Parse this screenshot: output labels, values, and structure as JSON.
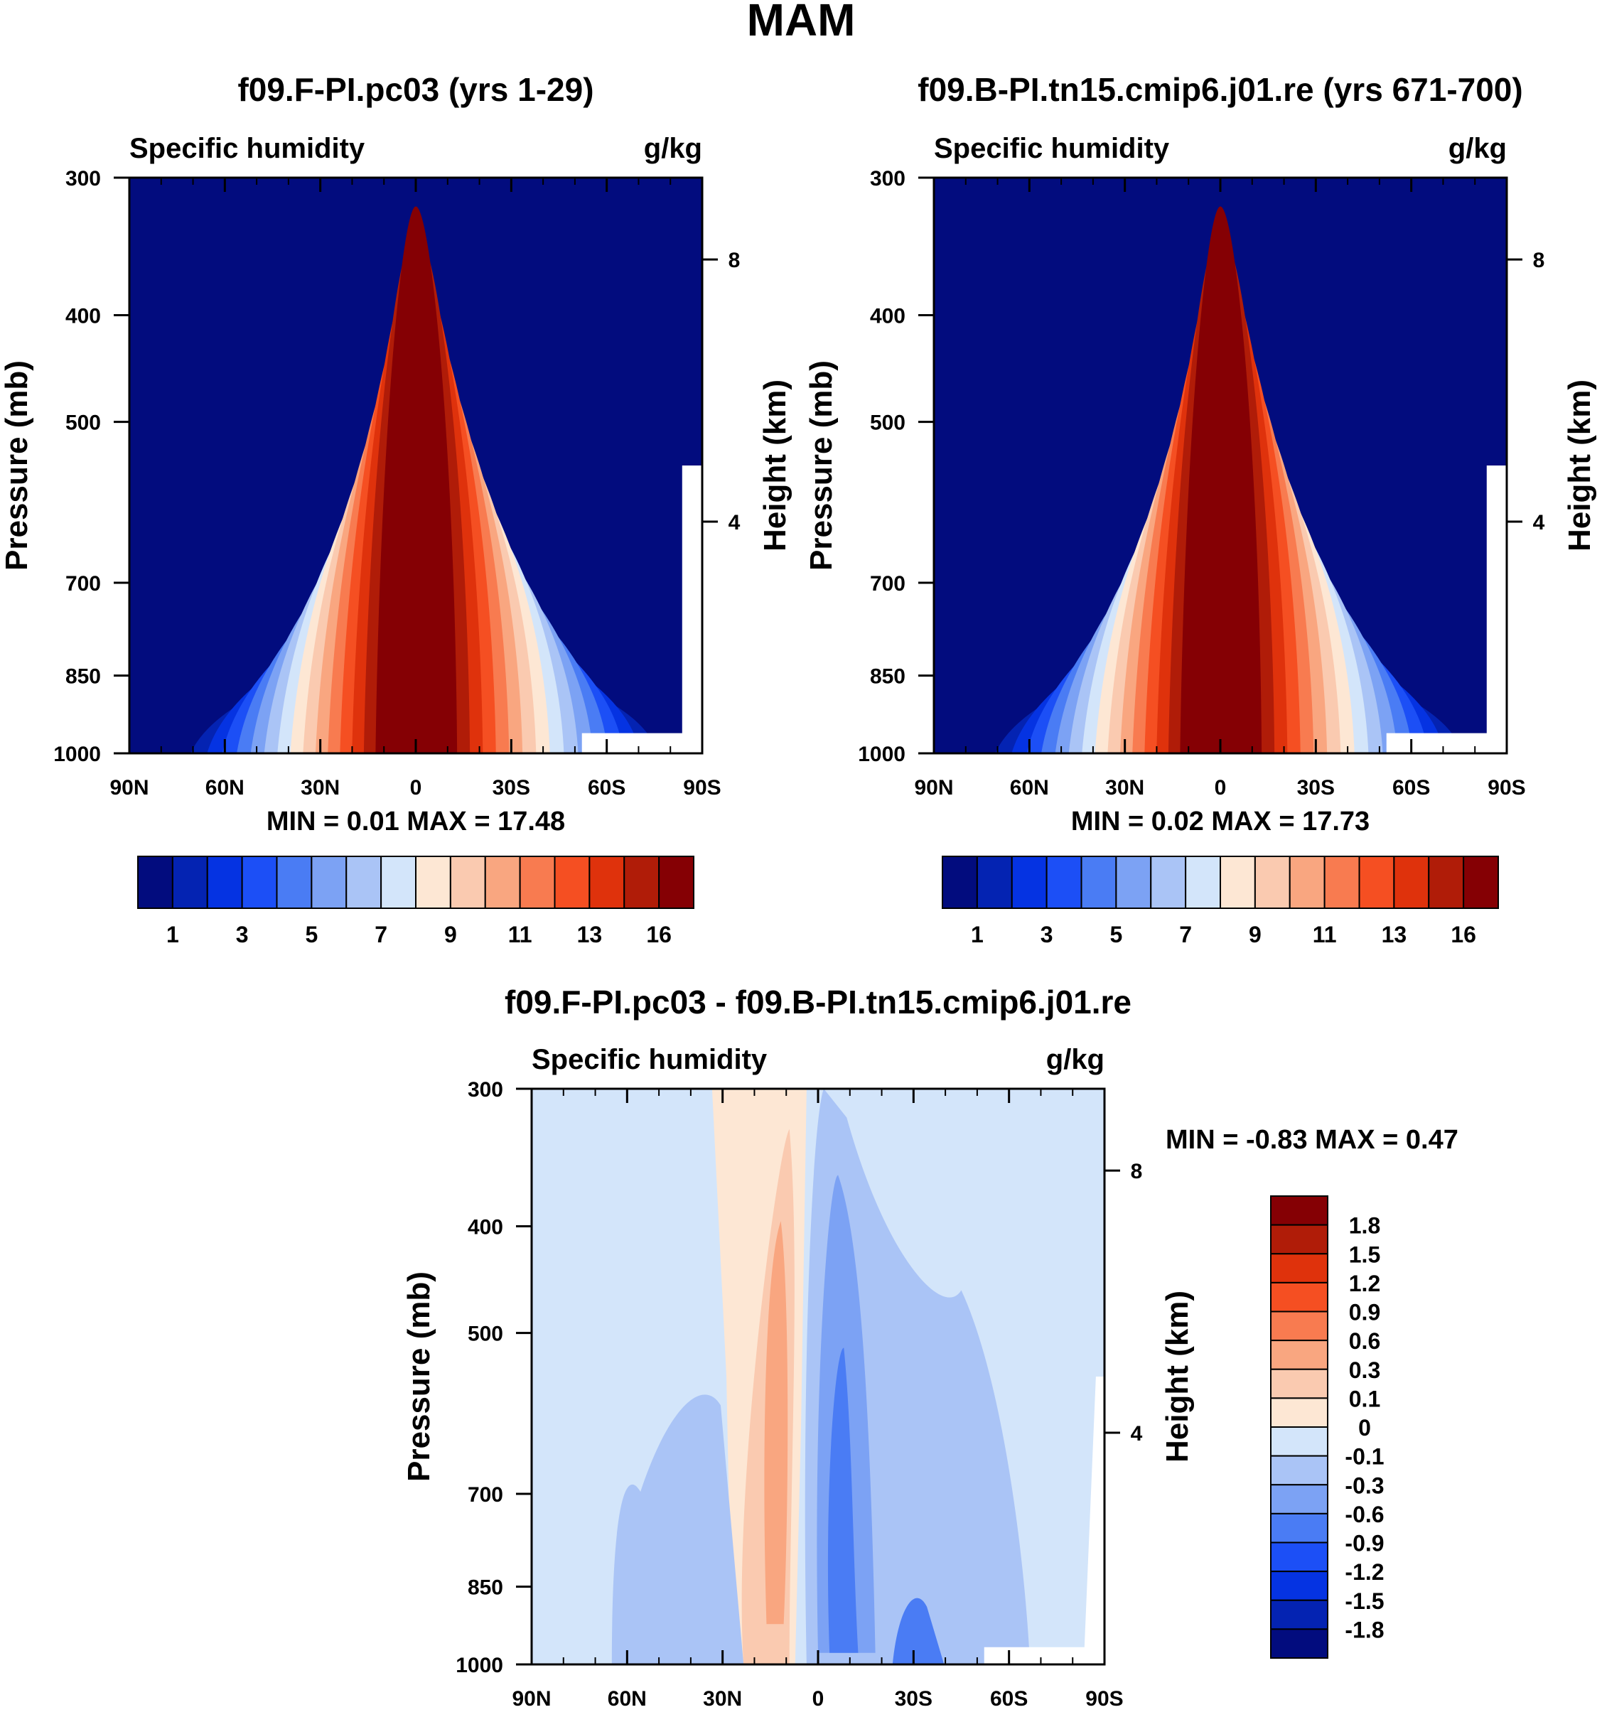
{
  "figure": {
    "title": "MAM"
  },
  "chart_data": [
    {
      "type": "heatmap",
      "title": "f09.F-PI.pc03 (yrs 1-29)",
      "subtitle_left": "Specific humidity",
      "subtitle_right": "g/kg",
      "ylabel": "Pressure (mb)",
      "ylabel_right": "Height (km)",
      "x_ticks": [
        "90N",
        "60N",
        "30N",
        "0",
        "30S",
        "60S",
        "90S"
      ],
      "y_ticks": [
        "300",
        "400",
        "500",
        "700",
        "850",
        "1000"
      ],
      "y_ticks_right": [
        "8",
        "4"
      ],
      "min_label": "MIN =",
      "min_value": "0.01",
      "max_label": "MAX =",
      "max_value": "17.48",
      "ylim": [
        1000,
        300
      ],
      "xlim": [
        "90N",
        "90S"
      ],
      "colorbar_labels": [
        "1",
        "3",
        "5",
        "7",
        "9",
        "11",
        "13",
        "16"
      ],
      "colorbar_colors": [
        "#020c7e",
        "#0423b2",
        "#0533e2",
        "#1c4ff6",
        "#4a7cf4",
        "#7ca2f4",
        "#aac4f6",
        "#d3e5fa",
        "#fde7d4",
        "#facab0",
        "#f9a680",
        "#f87b50",
        "#f54f22",
        "#df320c",
        "#b01c08",
        "#850004"
      ],
      "peak_center_lat": 0,
      "peak_max": 17.48
    },
    {
      "type": "heatmap",
      "title": "f09.B-PI.tn15.cmip6.j01.re (yrs 671-700)",
      "subtitle_left": "Specific humidity",
      "subtitle_right": "g/kg",
      "ylabel": "Pressure (mb)",
      "ylabel_right": "Height (km)",
      "x_ticks": [
        "90N",
        "60N",
        "30N",
        "0",
        "30S",
        "60S",
        "90S"
      ],
      "y_ticks": [
        "300",
        "400",
        "500",
        "700",
        "850",
        "1000"
      ],
      "y_ticks_right": [
        "8",
        "4"
      ],
      "min_label": "MIN =",
      "min_value": "0.02",
      "max_label": "MAX =",
      "max_value": "17.73",
      "ylim": [
        1000,
        300
      ],
      "xlim": [
        "90N",
        "90S"
      ],
      "colorbar_labels": [
        "1",
        "3",
        "5",
        "7",
        "9",
        "11",
        "13",
        "16"
      ],
      "colorbar_colors": [
        "#020c7e",
        "#0423b2",
        "#0533e2",
        "#1c4ff6",
        "#4a7cf4",
        "#7ca2f4",
        "#aac4f6",
        "#d3e5fa",
        "#fde7d4",
        "#facab0",
        "#f9a680",
        "#f87b50",
        "#f54f22",
        "#df320c",
        "#b01c08",
        "#850004"
      ],
      "peak_center_lat": 0,
      "peak_max": 17.73
    },
    {
      "type": "heatmap",
      "title": "f09.F-PI.pc03 - f09.B-PI.tn15.cmip6.j01.re",
      "subtitle_left": "Specific humidity",
      "subtitle_right": "g/kg",
      "ylabel": "Pressure (mb)",
      "ylabel_right": "Height (km)",
      "x_ticks": [
        "90N",
        "60N",
        "30N",
        "0",
        "30S",
        "60S",
        "90S"
      ],
      "y_ticks": [
        "300",
        "400",
        "500",
        "700",
        "850",
        "1000"
      ],
      "y_ticks_right": [
        "8",
        "4"
      ],
      "min_label": "MIN =",
      "min_value": "-0.83",
      "max_label": "MAX =",
      "max_value": "0.47",
      "ylim": [
        1000,
        300
      ],
      "xlim": [
        "90N",
        "90S"
      ],
      "colorbar_labels": [
        "1.8",
        "1.5",
        "1.2",
        "0.9",
        "0.6",
        "0.3",
        "0.1",
        "0",
        "-0.1",
        "-0.3",
        "-0.6",
        "-0.9",
        "-1.2",
        "-1.5",
        "-1.8"
      ],
      "colorbar_colors": [
        "#850004",
        "#b01c08",
        "#df320c",
        "#f54f22",
        "#f87b50",
        "#f9a680",
        "#facab0",
        "#fde7d4",
        "#d3e5fa",
        "#aac4f6",
        "#7ca2f4",
        "#4a7cf4",
        "#1c4ff6",
        "#0533e2",
        "#0423b2",
        "#020c7e"
      ]
    }
  ]
}
